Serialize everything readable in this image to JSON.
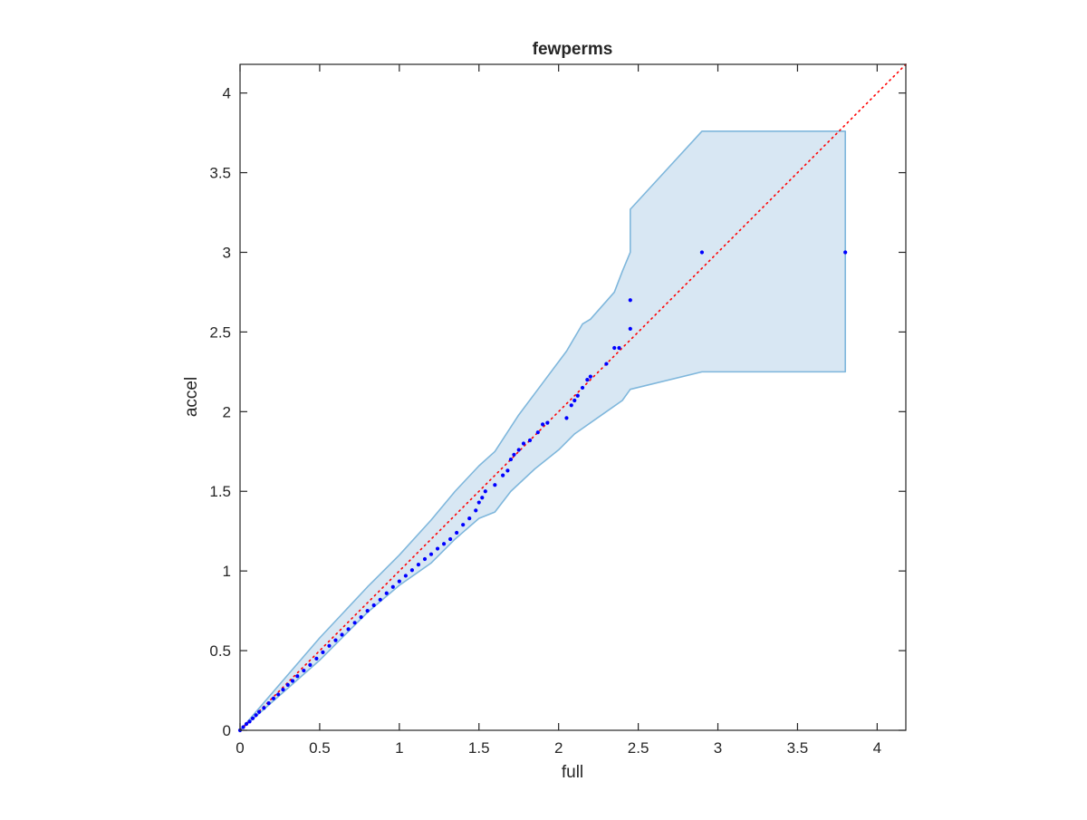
{
  "chart_data": {
    "type": "scatter",
    "title": "fewperms",
    "xlabel": "full",
    "ylabel": "accel",
    "xlim": [
      0,
      4.18
    ],
    "ylim": [
      0,
      4.18
    ],
    "xticks": [
      0,
      0.5,
      1,
      1.5,
      2,
      2.5,
      3,
      3.5,
      4
    ],
    "yticks": [
      0,
      0.5,
      1,
      1.5,
      2,
      2.5,
      3,
      3.5,
      4
    ],
    "xtick_labels": [
      "0",
      "0.5",
      "1",
      "1.5",
      "2",
      "2.5",
      "3",
      "3.5",
      "4"
    ],
    "ytick_labels": [
      "0",
      "0.5",
      "1",
      "1.5",
      "2",
      "2.5",
      "3",
      "3.5",
      "4"
    ],
    "grid": false,
    "box": true,
    "colors": {
      "points": "#0000ff",
      "reference_line": "#ff0000",
      "band_fill": "#d8e7f3",
      "band_edge": "#7fb7dc",
      "axes": "#262626"
    },
    "reference_line": {
      "x": [
        0,
        4.18
      ],
      "y": [
        0,
        4.18
      ],
      "style": "dotted"
    },
    "confidence_band": {
      "upper": [
        [
          0,
          0
        ],
        [
          0.5,
          0.58
        ],
        [
          0.8,
          0.9
        ],
        [
          1.0,
          1.1
        ],
        [
          1.2,
          1.32
        ],
        [
          1.35,
          1.5
        ],
        [
          1.5,
          1.66
        ],
        [
          1.6,
          1.75
        ],
        [
          1.75,
          1.98
        ],
        [
          1.9,
          2.18
        ],
        [
          2.05,
          2.38
        ],
        [
          2.15,
          2.55
        ],
        [
          2.2,
          2.58
        ],
        [
          2.35,
          2.75
        ],
        [
          2.4,
          2.88
        ],
        [
          2.45,
          3.0
        ],
        [
          2.45,
          3.27
        ],
        [
          2.9,
          3.76
        ],
        [
          3.8,
          3.76
        ]
      ],
      "lower": [
        [
          0,
          0
        ],
        [
          0.5,
          0.44
        ],
        [
          0.8,
          0.74
        ],
        [
          1.0,
          0.91
        ],
        [
          1.2,
          1.05
        ],
        [
          1.35,
          1.2
        ],
        [
          1.5,
          1.33
        ],
        [
          1.6,
          1.37
        ],
        [
          1.7,
          1.5
        ],
        [
          1.85,
          1.64
        ],
        [
          2.0,
          1.76
        ],
        [
          2.1,
          1.86
        ],
        [
          2.3,
          2.0
        ],
        [
          2.4,
          2.07
        ],
        [
          2.45,
          2.14
        ],
        [
          2.9,
          2.25
        ],
        [
          3.8,
          2.25
        ]
      ]
    },
    "series": [
      {
        "x": [
          0,
          0.02,
          0.04,
          0.06,
          0.08,
          0.1,
          0.12,
          0.15,
          0.18,
          0.21,
          0.24,
          0.27,
          0.3,
          0.33,
          0.36,
          0.4,
          0.44,
          0.48,
          0.52,
          0.56,
          0.6,
          0.64,
          0.68,
          0.72,
          0.76,
          0.8,
          0.84,
          0.88,
          0.92,
          0.96,
          1.0,
          1.04,
          1.08,
          1.12,
          1.16,
          1.2,
          1.24,
          1.28,
          1.32,
          1.36,
          1.4,
          1.44,
          1.48,
          1.5,
          1.52,
          1.54,
          1.6,
          1.65,
          1.68,
          1.7,
          1.72,
          1.75,
          1.78,
          1.82,
          1.87,
          1.9,
          1.93,
          2.05,
          2.08,
          2.1,
          2.12,
          2.15,
          2.18,
          2.2,
          2.3,
          2.35,
          2.38,
          2.45,
          2.45,
          2.9,
          3.8
        ],
        "y": [
          0,
          0.02,
          0.04,
          0.055,
          0.075,
          0.095,
          0.115,
          0.14,
          0.17,
          0.2,
          0.225,
          0.255,
          0.285,
          0.31,
          0.34,
          0.375,
          0.41,
          0.45,
          0.49,
          0.53,
          0.565,
          0.6,
          0.635,
          0.675,
          0.71,
          0.75,
          0.785,
          0.82,
          0.86,
          0.9,
          0.935,
          0.97,
          1.005,
          1.04,
          1.075,
          1.105,
          1.14,
          1.17,
          1.2,
          1.24,
          1.29,
          1.33,
          1.38,
          1.43,
          1.46,
          1.5,
          1.54,
          1.6,
          1.63,
          1.7,
          1.73,
          1.76,
          1.8,
          1.82,
          1.87,
          1.92,
          1.93,
          1.96,
          2.04,
          2.07,
          2.1,
          2.15,
          2.2,
          2.22,
          2.3,
          2.4,
          2.4,
          2.52,
          2.7,
          3.0,
          3.0
        ]
      }
    ]
  }
}
